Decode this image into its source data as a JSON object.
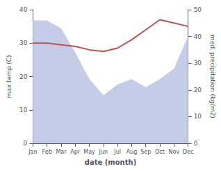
{
  "chart_data": {
    "type": "line",
    "xlabel": "date (month)",
    "ylabel": "max temp (C)",
    "y2label": "med. precipitation (kg/m2)",
    "categories": [
      "Jan",
      "Feb",
      "Mar",
      "Apr",
      "May",
      "Jun",
      "Jul",
      "Aug",
      "Sep",
      "Oct",
      "Nov",
      "Dec"
    ],
    "series": [
      {
        "type": "area",
        "axis": "y2",
        "color": "#c5cce8",
        "values": [
          46,
          46,
          43,
          34,
          24,
          18,
          22,
          24,
          21,
          24,
          28,
          40
        ]
      },
      {
        "type": "line",
        "color": "#c0504d",
        "values": [
          30,
          30,
          29.5,
          29,
          28,
          27.5,
          28.5,
          31,
          34,
          37,
          36,
          35
        ]
      }
    ],
    "ylim": [
      0,
      40
    ],
    "yticks": [
      0,
      10,
      20,
      30,
      40
    ],
    "y2lim": [
      0,
      50
    ],
    "y2ticks": [
      0,
      10,
      20,
      30,
      40,
      50
    ],
    "grid": false
  }
}
